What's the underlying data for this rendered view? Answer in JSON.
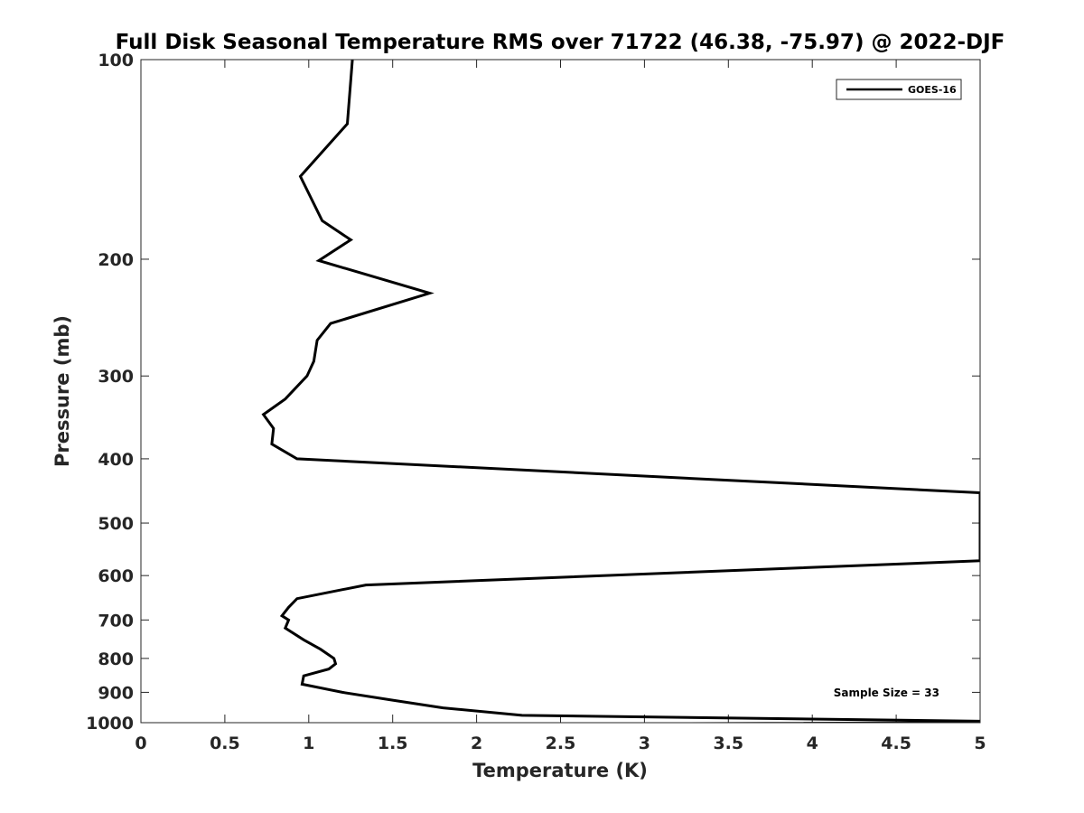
{
  "chart_data": {
    "type": "line",
    "title": "Full Disk Seasonal Temperature RMS over 71722 (46.38, -75.97) @ 2022-DJF",
    "xlabel": "Temperature (K)",
    "ylabel": "Pressure (mb)",
    "xlim": [
      0,
      5
    ],
    "ylim": [
      100,
      1000
    ],
    "y_scale": "log",
    "y_reversed": true,
    "x_ticks": [
      "0",
      "0.5",
      "1",
      "1.5",
      "2",
      "2.5",
      "3",
      "3.5",
      "4",
      "4.5",
      "5"
    ],
    "y_ticks": [
      "100",
      "200",
      "300",
      "400",
      "500",
      "600",
      "700",
      "800",
      "900",
      "1000"
    ],
    "grid": false,
    "legend_position": "top-right",
    "annotation": "Sample Size = 33",
    "line_color": "#000000",
    "series": [
      {
        "name": "GOES-16",
        "points": [
          [
            1.26,
            100
          ],
          [
            1.23,
            125
          ],
          [
            0.95,
            150
          ],
          [
            1.08,
            175
          ],
          [
            1.25,
            187
          ],
          [
            1.06,
            201
          ],
          [
            1.72,
            225
          ],
          [
            1.13,
            250
          ],
          [
            1.05,
            265
          ],
          [
            1.03,
            285
          ],
          [
            0.99,
            300
          ],
          [
            0.86,
            325
          ],
          [
            0.73,
            343
          ],
          [
            0.79,
            360
          ],
          [
            0.78,
            380
          ],
          [
            0.93,
            400
          ],
          [
            5.0,
            450
          ],
          [
            5.0,
            570
          ],
          [
            1.34,
            620
          ],
          [
            0.93,
            650
          ],
          [
            0.88,
            670
          ],
          [
            0.84,
            690
          ],
          [
            0.88,
            700
          ],
          [
            0.86,
            720
          ],
          [
            0.97,
            750
          ],
          [
            1.07,
            775
          ],
          [
            1.15,
            800
          ],
          [
            1.16,
            815
          ],
          [
            1.12,
            830
          ],
          [
            0.97,
            850
          ],
          [
            0.96,
            875
          ],
          [
            1.2,
            900
          ],
          [
            1.5,
            925
          ],
          [
            1.8,
            950
          ],
          [
            2.27,
            975
          ],
          [
            5.0,
            995
          ],
          [
            5.0,
            1000
          ],
          [
            3.22,
            1003
          ]
        ]
      }
    ]
  }
}
